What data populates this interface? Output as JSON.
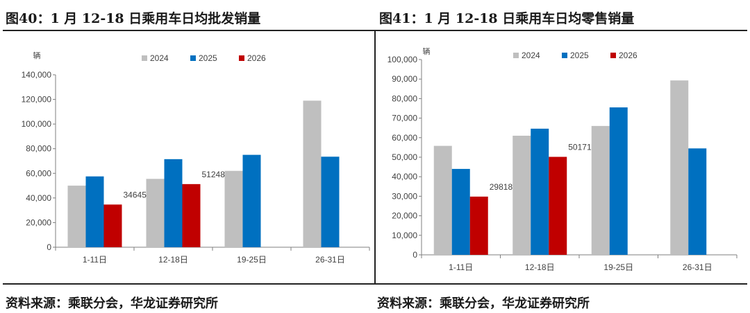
{
  "left": {
    "title": "图40：1 月 12-18 日乘用车日均批发销量",
    "source": "资料来源：乘联分会，华龙证券研究所"
  },
  "right": {
    "title": "图41：1 月 12-18 日乘用车日均零售销量",
    "source": "资料来源：乘联分会，华龙证券研究所"
  },
  "colors": {
    "2024": "#bfbfbf",
    "2025": "#0070c0",
    "2026": "#c00000",
    "axis": "#7f7f7f",
    "text": "#404040"
  },
  "chart_data": [
    {
      "type": "bar",
      "unit_label": "辆",
      "categories": [
        "1-11日",
        "12-18日",
        "19-25日",
        "26-31日"
      ],
      "series": [
        {
          "name": "2024",
          "values": [
            50000,
            55500,
            62000,
            119000
          ]
        },
        {
          "name": "2025",
          "values": [
            57500,
            71500,
            75000,
            73500
          ]
        },
        {
          "name": "2026",
          "values": [
            34645,
            51248,
            null,
            null
          ]
        }
      ],
      "data_labels": {
        "2026": [
          "34645",
          "51248"
        ]
      },
      "ylim": [
        0,
        140000
      ],
      "yticks": [
        0,
        20000,
        40000,
        60000,
        80000,
        100000,
        120000,
        140000
      ],
      "ytick_labels": [
        "0",
        "20,000",
        "40,000",
        "60,000",
        "80,000",
        "100,000",
        "120,000",
        "140,000"
      ],
      "legend_position": "top-center",
      "grid": false
    },
    {
      "type": "bar",
      "unit_label": "辆",
      "categories": [
        "1-11日",
        "12-18日",
        "19-25日",
        "26-31日"
      ],
      "series": [
        {
          "name": "2024",
          "values": [
            55800,
            61000,
            66000,
            89300
          ]
        },
        {
          "name": "2025",
          "values": [
            44000,
            64600,
            75500,
            54500
          ]
        },
        {
          "name": "2026",
          "values": [
            29818,
            50171,
            null,
            null
          ]
        }
      ],
      "data_labels": {
        "2026": [
          "29818",
          "50171"
        ]
      },
      "ylim": [
        0,
        100000
      ],
      "yticks": [
        0,
        10000,
        20000,
        30000,
        40000,
        50000,
        60000,
        70000,
        80000,
        90000,
        100000
      ],
      "ytick_labels": [
        "0",
        "10,000",
        "20,000",
        "30,000",
        "40,000",
        "50,000",
        "60,000",
        "70,000",
        "80,000",
        "90,000",
        "100,000"
      ],
      "legend_position": "top-center",
      "grid": false
    }
  ]
}
